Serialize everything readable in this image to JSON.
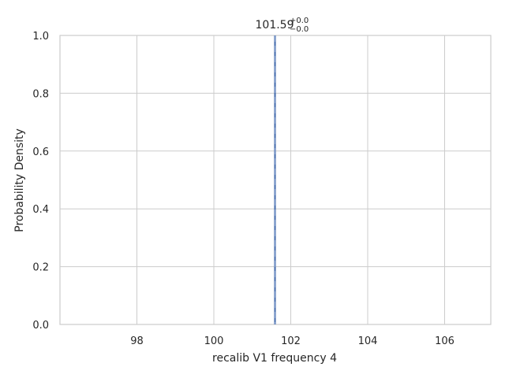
{
  "chart_data": {
    "type": "line",
    "title": "",
    "xlabel": "recalib V1 frequency 4",
    "ylabel": "Probability Density",
    "xlim": [
      96.0,
      107.2
    ],
    "ylim": [
      0.0,
      1.0
    ],
    "xticks": [
      98,
      100,
      102,
      104,
      106
    ],
    "xtick_labels": [
      "98",
      "100",
      "102",
      "104",
      "106"
    ],
    "yticks": [
      0.0,
      0.2,
      0.4,
      0.6,
      0.8,
      1.0
    ],
    "ytick_labels": [
      "0.0",
      "0.2",
      "0.4",
      "0.6",
      "0.8",
      "1.0"
    ],
    "grid": true,
    "median": 101.59,
    "annotation": {
      "value": "101.59",
      "upper": "+0.0",
      "lower": "−0.0"
    },
    "series_color": "#4c72b0"
  }
}
